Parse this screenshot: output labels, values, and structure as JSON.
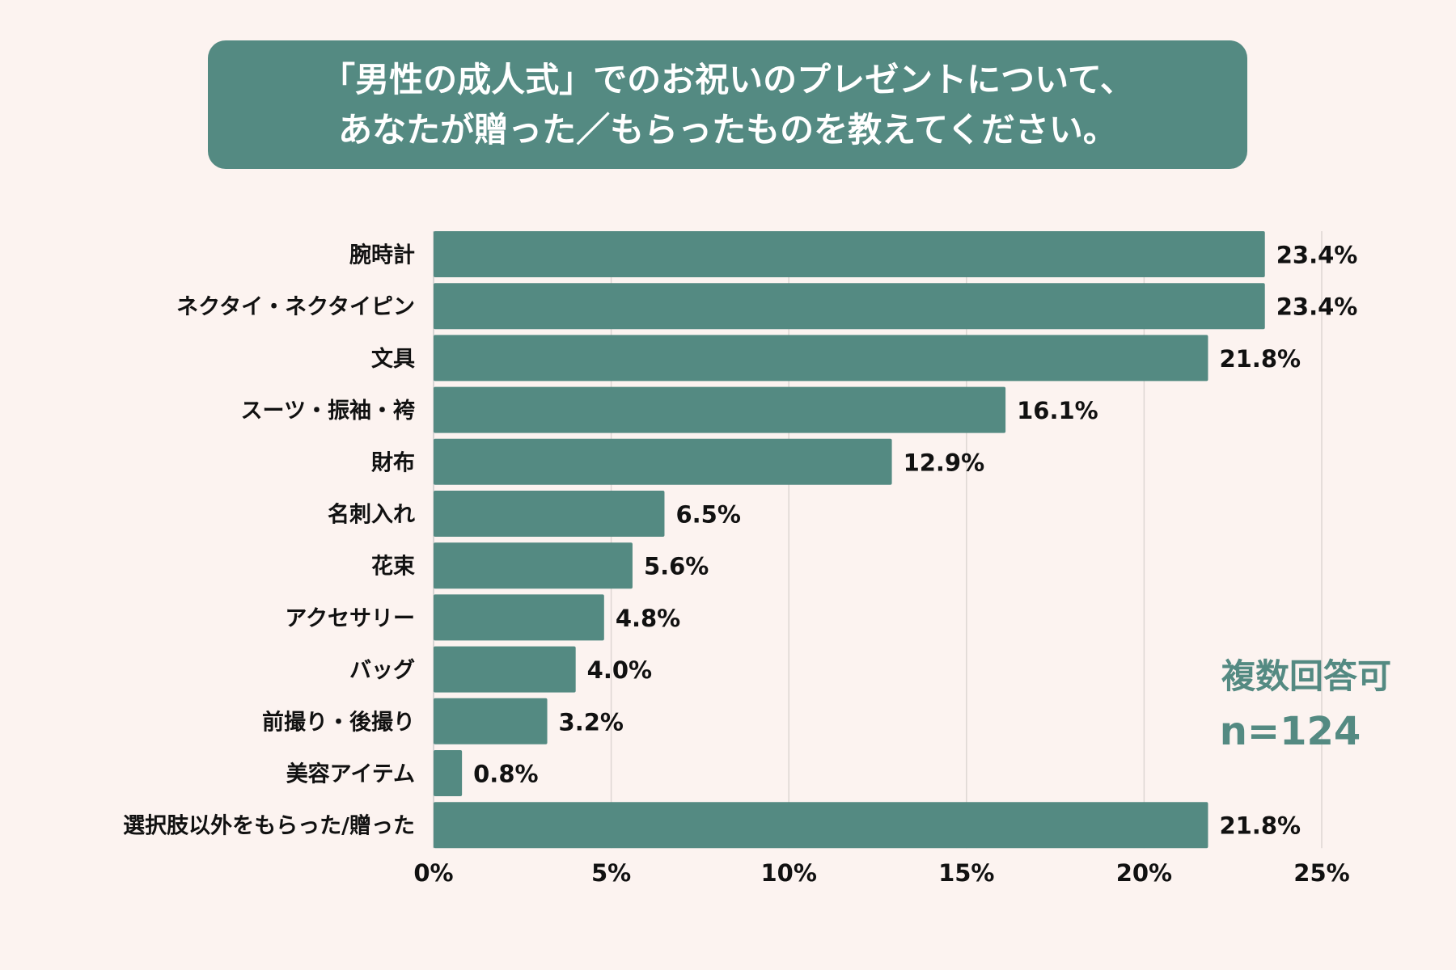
{
  "title": {
    "line1": "「男性の成人式」でのお祝いのプレゼントについて、",
    "line2": "あなたが贈った／もらったものを教えてください。"
  },
  "note": {
    "multiple": "複数回答可",
    "n": "n=124"
  },
  "colors": {
    "bar": "#548a82",
    "background": "#fcf3f0",
    "title_bg": "#548a82"
  },
  "chart_data": {
    "type": "bar",
    "orientation": "horizontal",
    "categories": [
      "腕時計",
      "ネクタイ・ネクタイピン",
      "文具",
      "スーツ・振袖・袴",
      "財布",
      "名刺入れ",
      "花束",
      "アクセサリー",
      "バッグ",
      "前撮り・後撮り",
      "美容アイテム",
      "選択肢以外をもらった/贈った"
    ],
    "values": [
      23.4,
      23.4,
      21.8,
      16.1,
      12.9,
      6.5,
      5.6,
      4.8,
      4.0,
      3.2,
      0.8,
      21.8
    ],
    "value_labels": [
      "23.4%",
      "23.4%",
      "21.8%",
      "16.1%",
      "12.9%",
      "6.5%",
      "5.6%",
      "4.8%",
      "4.0%",
      "3.2%",
      "0.8%",
      "21.8%"
    ],
    "xlim": [
      0,
      25
    ],
    "xticks": [
      "0%",
      "5%",
      "10%",
      "15%",
      "20%",
      "25%"
    ],
    "grid": true
  }
}
